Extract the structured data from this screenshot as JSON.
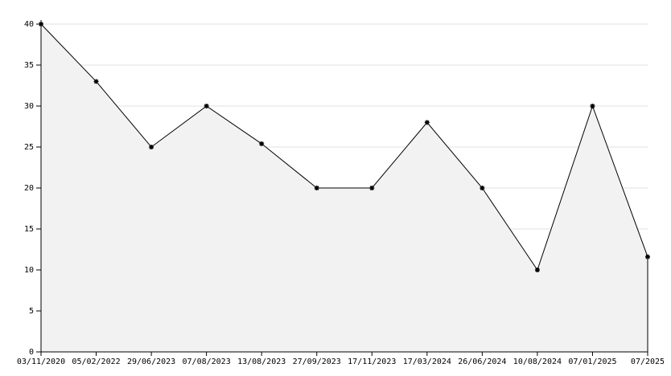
{
  "chart_data": {
    "type": "area",
    "categories": [
      "03/11/2020",
      "05/02/2022",
      "29/06/2023",
      "07/08/2023",
      "13/08/2023",
      "27/09/2023",
      "17/11/2023",
      "17/03/2024",
      "26/06/2024",
      "10/08/2024",
      "07/01/2025",
      "07/2025"
    ],
    "values": [
      40,
      33,
      25,
      30,
      25.4,
      20,
      20,
      28,
      20,
      10,
      30,
      11.6
    ],
    "color": "#000000",
    "fill": "#f2f2f2",
    "ylim": [
      0,
      40
    ],
    "yticks": [
      0,
      5,
      10,
      15,
      20,
      25,
      30,
      35,
      40
    ],
    "grid": true
  }
}
